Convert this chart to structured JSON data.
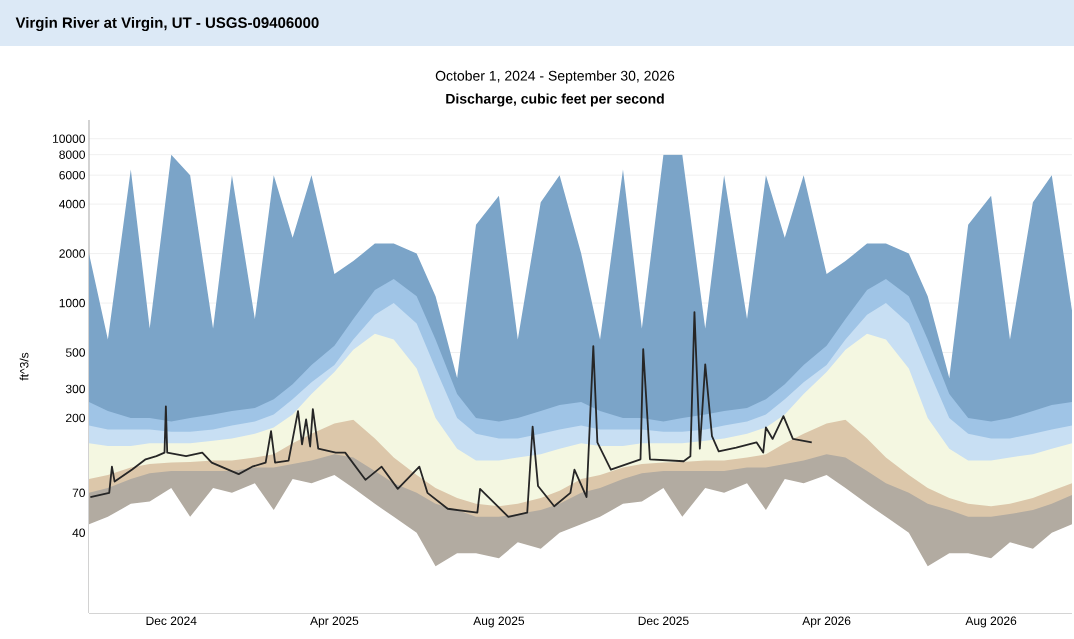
{
  "chart_data": {
    "type": "area",
    "title": "Virgin River at Virgin, UT - USGS-09406000",
    "subtitle": "October 1, 2024 - September 30, 2026",
    "annotations": [
      "Discharge, cubic feet per second"
    ],
    "ylabel": "ft^3/s",
    "log": "y",
    "grid": "y",
    "xlim": [
      "2024-10-01",
      "2026-09-30"
    ],
    "ylim": [
      13,
      13000
    ],
    "yticks": [
      40,
      70,
      200,
      300,
      500,
      1000,
      2000,
      4000,
      6000,
      8000,
      10000
    ],
    "xticks": [
      {
        "value": "2024-12-01",
        "label": "Dec 2024"
      },
      {
        "value": "2025-04-01",
        "label": "Apr 2025"
      },
      {
        "value": "2025-08-01",
        "label": "Aug 2025"
      },
      {
        "value": "2025-12-01",
        "label": "Dec 2025"
      },
      {
        "value": "2026-04-01",
        "label": "Apr 2026"
      },
      {
        "value": "2026-08-01",
        "label": "Aug 2026"
      }
    ],
    "x": [
      "2024-10-01",
      "2024-10-15",
      "2024-11-01",
      "2024-11-15",
      "2024-12-01",
      "2024-12-15",
      "2025-01-01",
      "2025-01-15",
      "2025-02-01",
      "2025-02-15",
      "2025-03-01",
      "2025-03-15",
      "2025-04-01",
      "2025-04-15",
      "2025-05-01",
      "2025-05-15",
      "2025-06-01",
      "2025-06-15",
      "2025-07-01",
      "2025-07-15",
      "2025-08-01",
      "2025-08-15",
      "2025-09-01",
      "2025-09-15",
      "2025-10-01",
      "2025-10-15",
      "2025-11-01",
      "2025-11-15",
      "2025-12-01",
      "2025-12-15",
      "2026-01-01",
      "2026-01-15",
      "2026-02-01",
      "2026-02-15",
      "2026-03-01",
      "2026-03-15",
      "2026-04-01",
      "2026-04-15",
      "2026-05-01",
      "2026-05-15",
      "2026-06-01",
      "2026-06-15",
      "2026-07-01",
      "2026-07-15",
      "2026-08-01",
      "2026-08-15",
      "2026-09-01",
      "2026-09-15",
      "2026-09-30"
    ],
    "series": [
      {
        "color": "#7ba4c8",
        "values": [
          2000,
          600,
          6500,
          700,
          8000,
          6000,
          700,
          6000,
          800,
          6000,
          2500,
          6000,
          1500,
          1800,
          2300,
          2300,
          2000,
          1100,
          350,
          3000,
          4500,
          600,
          4100,
          6000,
          2000,
          600,
          6500,
          700,
          8000,
          8000,
          700,
          6000,
          800,
          6000,
          2500,
          6000,
          1500,
          1800,
          2300,
          2300,
          2000,
          1100,
          350,
          3000,
          4500,
          600,
          4100,
          6000,
          900
        ]
      },
      {
        "color": "#9fc4e6",
        "values": [
          250,
          220,
          200,
          200,
          190,
          200,
          210,
          220,
          230,
          260,
          320,
          420,
          550,
          800,
          1200,
          1400,
          1100,
          600,
          280,
          200,
          190,
          200,
          220,
          240,
          250,
          220,
          200,
          200,
          190,
          200,
          210,
          220,
          230,
          260,
          320,
          420,
          550,
          800,
          1200,
          1400,
          1100,
          600,
          280,
          200,
          190,
          200,
          220,
          240,
          250
        ]
      },
      {
        "color": "#c8dff3",
        "values": [
          180,
          170,
          170,
          170,
          165,
          165,
          170,
          180,
          190,
          210,
          260,
          330,
          420,
          600,
          850,
          1000,
          750,
          400,
          200,
          160,
          150,
          150,
          160,
          170,
          180,
          170,
          170,
          170,
          165,
          165,
          170,
          180,
          190,
          210,
          260,
          330,
          420,
          600,
          850,
          1000,
          750,
          400,
          200,
          160,
          150,
          150,
          160,
          170,
          180
        ]
      },
      {
        "color": "#f4f7e1",
        "values": [
          140,
          135,
          135,
          140,
          140,
          140,
          145,
          150,
          160,
          175,
          210,
          280,
          380,
          520,
          650,
          600,
          400,
          200,
          130,
          110,
          110,
          115,
          120,
          130,
          140,
          135,
          135,
          140,
          140,
          140,
          145,
          150,
          160,
          175,
          210,
          280,
          380,
          520,
          650,
          600,
          400,
          200,
          130,
          110,
          110,
          115,
          120,
          130,
          140
        ]
      },
      {
        "color": "#dcc7aa",
        "values": [
          85,
          90,
          100,
          105,
          107,
          108,
          110,
          110,
          115,
          120,
          140,
          160,
          185,
          195,
          150,
          115,
          90,
          75,
          65,
          60,
          58,
          60,
          65,
          72,
          85,
          90,
          100,
          105,
          107,
          108,
          110,
          110,
          115,
          120,
          140,
          160,
          185,
          195,
          150,
          115,
          90,
          75,
          65,
          60,
          58,
          60,
          65,
          72,
          80
        ]
      },
      {
        "color": "#b2aba1",
        "values": [
          70,
          75,
          85,
          92,
          95,
          95,
          95,
          95,
          100,
          100,
          105,
          110,
          120,
          115,
          95,
          80,
          70,
          60,
          55,
          50,
          50,
          52,
          55,
          60,
          70,
          75,
          85,
          92,
          95,
          95,
          95,
          95,
          100,
          100,
          105,
          110,
          120,
          115,
          95,
          80,
          70,
          60,
          55,
          50,
          50,
          52,
          55,
          60,
          68
        ]
      },
      {
        "color": "#ffffff",
        "values": [
          45,
          50,
          60,
          62,
          75,
          50,
          75,
          70,
          80,
          55,
          85,
          80,
          90,
          75,
          60,
          50,
          40,
          25,
          30,
          30,
          28,
          35,
          32,
          40,
          45,
          50,
          60,
          62,
          75,
          50,
          75,
          70,
          80,
          55,
          85,
          80,
          90,
          75,
          60,
          50,
          40,
          25,
          30,
          30,
          28,
          35,
          32,
          40,
          45
        ]
      },
      {
        "type": "line",
        "color": "#262626",
        "x": [
          "2024-10-02",
          "2024-10-16",
          "2024-10-18",
          "2024-10-20",
          "2024-11-02",
          "2024-11-12",
          "2024-11-20",
          "2024-11-26",
          "2024-11-27",
          "2024-11-28",
          "2024-12-12",
          "2024-12-24",
          "2024-12-31",
          "2025-01-20",
          "2025-01-30",
          "2025-02-09",
          "2025-02-13",
          "2025-02-16",
          "2025-02-26",
          "2025-03-05",
          "2025-03-08",
          "2025-03-11",
          "2025-03-14",
          "2025-03-16",
          "2025-03-20",
          "2025-04-02",
          "2025-04-09",
          "2025-04-24",
          "2025-05-06",
          "2025-05-18",
          "2025-06-03",
          "2025-06-09",
          "2025-06-24",
          "2025-07-16",
          "2025-07-18",
          "2025-08-08",
          "2025-08-22",
          "2025-08-26",
          "2025-08-30",
          "2025-09-11",
          "2025-09-23",
          "2025-09-26",
          "2025-10-05",
          "2025-10-10",
          "2025-10-13",
          "2025-10-23",
          "2025-11-07",
          "2025-11-14",
          "2025-11-16",
          "2025-11-21",
          "2025-12-16",
          "2025-12-21",
          "2025-12-24",
          "2025-12-28",
          "2026-01-01",
          "2026-01-06",
          "2026-01-11",
          "2026-01-24",
          "2026-02-08",
          "2026-02-13",
          "2026-02-15",
          "2026-02-20",
          "2026-02-28",
          "2026-03-07",
          "2026-03-21"
        ],
        "values": [
          66,
          70,
          101,
          82,
          97,
          112,
          117,
          123,
          235,
          123,
          117,
          123,
          107,
          91,
          101,
          107,
          166,
          107,
          110,
          220,
          138,
          196,
          134,
          226,
          130,
          123,
          123,
          84,
          101,
          74,
          101,
          70,
          56,
          53,
          74,
          50,
          53,
          177,
          77,
          58,
          70,
          97,
          66,
          547,
          142,
          97,
          107,
          112,
          524,
          112,
          109,
          117,
          881,
          130,
          424,
          155,
          125,
          132,
          142,
          123,
          175,
          149,
          205,
          149,
          142
        ]
      }
    ]
  }
}
